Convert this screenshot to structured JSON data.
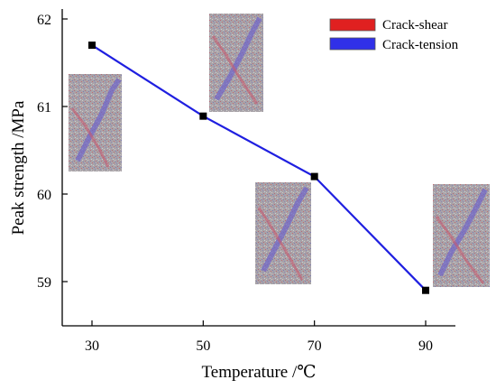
{
  "chart_data": {
    "type": "line",
    "title": "",
    "xlabel": "Temperature /℃",
    "ylabel": "Peak strength /MPa",
    "x": [
      30,
      50,
      70,
      90
    ],
    "series": [
      {
        "name": "",
        "values": [
          61.7,
          60.89,
          60.2,
          58.9
        ],
        "color": "#1f1fe0",
        "marker": "square",
        "marker_color": "#000000"
      }
    ],
    "xticks": [
      30,
      50,
      70,
      90
    ],
    "yticks": [
      59,
      60,
      61,
      62
    ],
    "xlim": [
      25,
      95
    ],
    "ylim": [
      58.5,
      62
    ],
    "grid": false,
    "legend": {
      "placement": "top-right",
      "entries": [
        {
          "label": "Crack-shear",
          "color": "#e02020"
        },
        {
          "label": "Crack-tension",
          "color": "#3030e8"
        }
      ]
    },
    "insets": [
      {
        "name": "crack-pattern-30",
        "description": "crack distribution image"
      },
      {
        "name": "crack-pattern-50",
        "description": "crack distribution image"
      },
      {
        "name": "crack-pattern-70",
        "description": "crack distribution image"
      },
      {
        "name": "crack-pattern-90",
        "description": "crack distribution image"
      }
    ]
  }
}
